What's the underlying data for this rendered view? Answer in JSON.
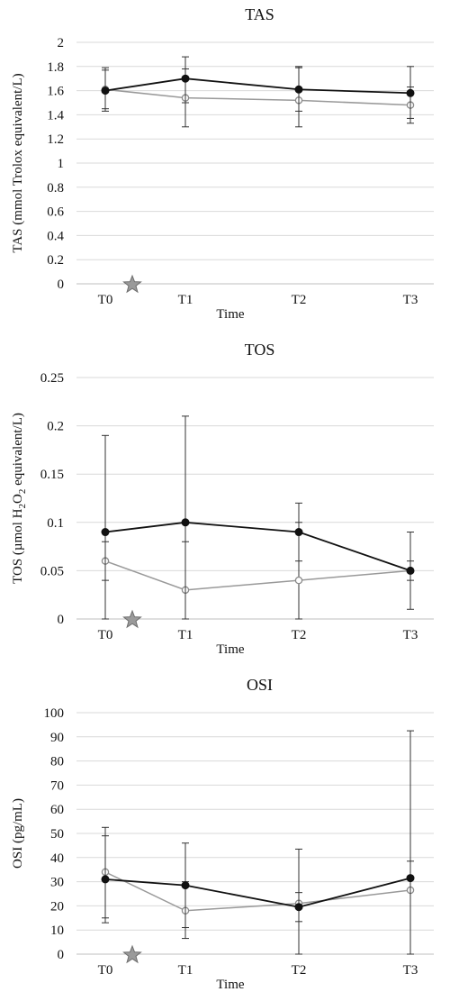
{
  "chart_data": [
    {
      "type": "line",
      "title": "TAS",
      "xlabel": "Time",
      "ylabel": "TAS (mmol Trolox equivalent/L)",
      "ylim": [
        0,
        2
      ],
      "ytick_step": 0.2,
      "ytick_labels": [
        "0",
        "0.2",
        "0.4",
        "0.6",
        "0.8",
        "1",
        "1.2",
        "1.4",
        "1.6",
        "1.8",
        "2"
      ],
      "categories": [
        "T0",
        "T1",
        "T2",
        "T3"
      ],
      "grid": true,
      "star_marker": true,
      "series": [
        {
          "color": "#111111",
          "marker": "filled-circle",
          "values": [
            1.6,
            1.7,
            1.61,
            1.58
          ],
          "error_low": [
            1.43,
            1.5,
            1.43,
            1.37
          ],
          "error_high": [
            1.77,
            1.88,
            1.79,
            1.8
          ]
        },
        {
          "color": "#999999",
          "marker": "open-circle",
          "values": [
            1.61,
            1.54,
            1.52,
            1.48
          ],
          "error_low": [
            1.45,
            1.3,
            1.3,
            1.33
          ],
          "error_high": [
            1.79,
            1.78,
            1.8,
            1.63
          ]
        }
      ]
    },
    {
      "type": "line",
      "title": "TOS",
      "xlabel": "Time",
      "ylabel_prefix": "TOS (µmol H",
      "ylabel_sub1": "2",
      "ylabel_mid": "O",
      "ylabel_sub2": "2",
      "ylabel_suffix": " equivalent/L)",
      "ylim": [
        0,
        0.25
      ],
      "ytick_step": 0.05,
      "ytick_labels": [
        "0",
        "0.05",
        "0.1",
        "0.15",
        "0.2",
        "0.25"
      ],
      "categories": [
        "T0",
        "T1",
        "T2",
        "T3"
      ],
      "grid": true,
      "star_marker": true,
      "series": [
        {
          "color": "#111111",
          "marker": "filled-circle",
          "values": [
            0.09,
            0.1,
            0.09,
            0.05
          ],
          "error_low": [
            0.0,
            0.0,
            0.06,
            0.04
          ],
          "error_high": [
            0.19,
            0.21,
            0.12,
            0.06
          ]
        },
        {
          "color": "#999999",
          "marker": "open-circle",
          "values": [
            0.06,
            0.03,
            0.04,
            0.05
          ],
          "error_low": [
            0.04,
            0.0,
            0.0,
            0.01
          ],
          "error_high": [
            0.08,
            0.08,
            0.1,
            0.09
          ]
        }
      ]
    },
    {
      "type": "line",
      "title": "OSI",
      "xlabel": "Time",
      "ylabel": "OSI (pg/mL)",
      "ylim": [
        0,
        100
      ],
      "ytick_step": 10,
      "ytick_labels": [
        "0",
        "10",
        "20",
        "30",
        "40",
        "50",
        "60",
        "70",
        "80",
        "90",
        "100"
      ],
      "categories": [
        "T0",
        "T1",
        "T2",
        "T3"
      ],
      "grid": true,
      "star_marker": true,
      "series": [
        {
          "color": "#111111",
          "marker": "filled-circle",
          "values": [
            31,
            28.5,
            19.5,
            31.5
          ],
          "error_low": [
            13,
            11,
            0,
            0
          ],
          "error_high": [
            49,
            46,
            25.5,
            92.5
          ]
        },
        {
          "color": "#999999",
          "marker": "open-circle",
          "values": [
            34,
            18,
            21,
            26.5
          ],
          "error_low": [
            15,
            6.5,
            13.5,
            0
          ],
          "error_high": [
            52.5,
            30,
            43.5,
            38.5
          ]
        }
      ]
    }
  ]
}
